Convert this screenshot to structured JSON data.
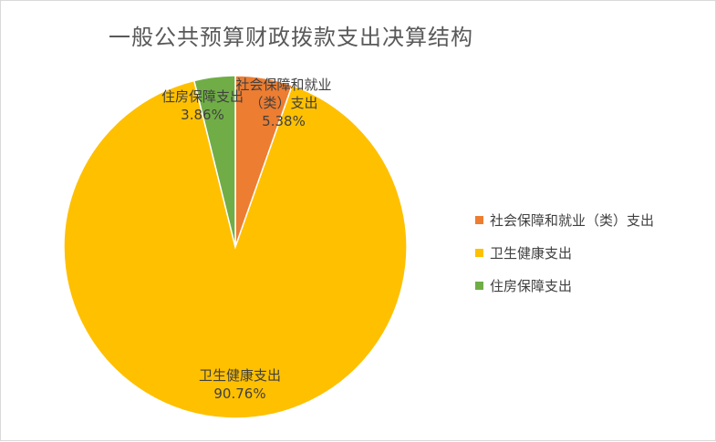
{
  "chart_data": {
    "type": "pie",
    "title": "一般公共预算财政拨款支出决算结构",
    "legend_position": "right",
    "slices": [
      {
        "name": "社会保障和就业（类）支出",
        "label_lines": [
          "社会保障和就业",
          "（类）支出"
        ],
        "value": 5.38,
        "value_label": "5.38%",
        "color": "#ED7D31"
      },
      {
        "name": "卫生健康支出",
        "label_lines": [
          "卫生健康支出"
        ],
        "value": 90.76,
        "value_label": "90.76%",
        "color": "#FFC000"
      },
      {
        "name": "住房保障支出",
        "label_lines": [
          "住房保障支出"
        ],
        "value": 3.86,
        "value_label": "3.86%",
        "color": "#70AD47"
      }
    ]
  }
}
